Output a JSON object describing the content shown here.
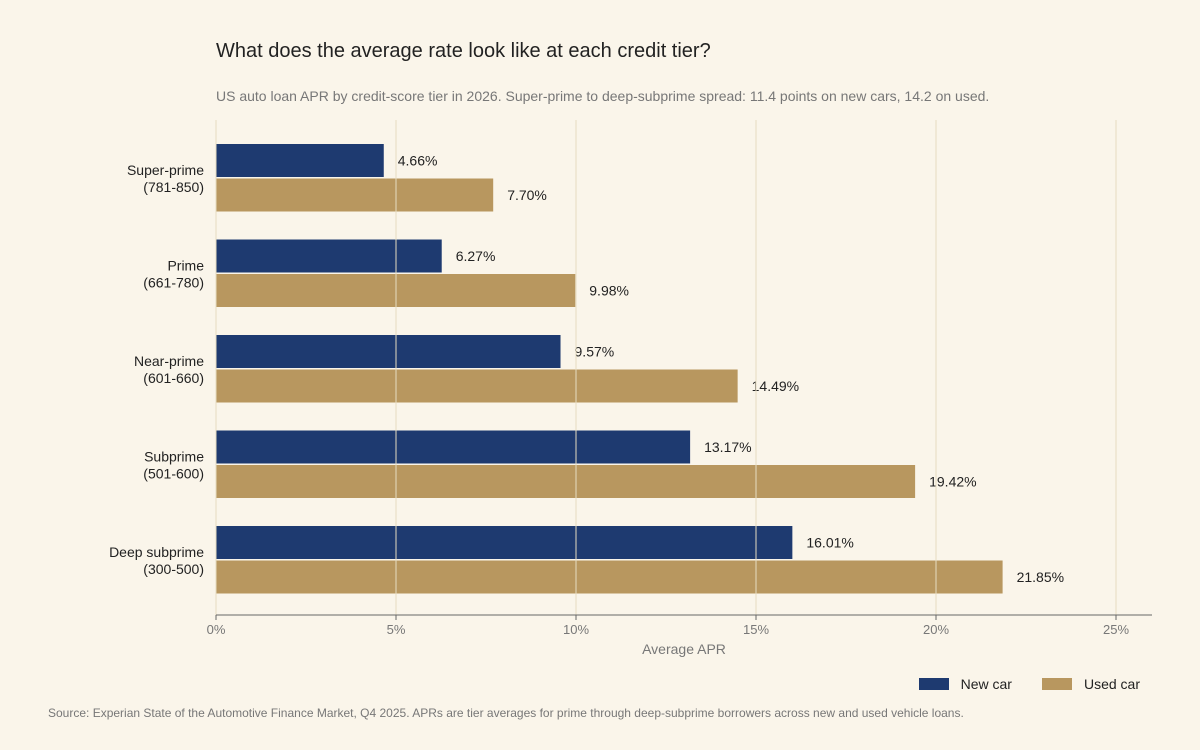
{
  "chart_data": {
    "type": "bar",
    "orientation": "horizontal",
    "title": "What does the average rate look like at each credit tier?",
    "subtitle": "US auto loan APR by credit-score tier in 2026. Super-prime to deep-subprime spread: 11.4 points on new cars, 14.2 on used.",
    "categories": [
      [
        "Super-prime",
        "(781-850)"
      ],
      [
        "Prime",
        "(661-780)"
      ],
      [
        "Near-prime",
        "(601-660)"
      ],
      [
        "Subprime",
        "(501-600)"
      ],
      [
        "Deep subprime",
        "(300-500)"
      ]
    ],
    "series": [
      {
        "name": "New car",
        "color": "#1e3a70",
        "values": [
          4.66,
          6.27,
          9.57,
          13.17,
          16.01
        ],
        "labels": [
          "4.66%",
          "6.27%",
          "9.57%",
          "13.17%",
          "16.01%"
        ]
      },
      {
        "name": "Used car",
        "color": "#b8975f",
        "values": [
          7.7,
          9.98,
          14.49,
          19.42,
          21.85
        ],
        "labels": [
          "7.70%",
          "9.98%",
          "14.49%",
          "19.42%",
          "21.85%"
        ]
      }
    ],
    "xlabel": "Average APR",
    "xlim": [
      0,
      26
    ],
    "xticks": [
      0,
      5,
      10,
      15,
      20,
      25
    ],
    "xtick_labels": [
      "0%",
      "5%",
      "10%",
      "15%",
      "20%",
      "25%"
    ],
    "grid": "vertical",
    "legend_position": "bottom-right"
  },
  "source": "Source: Experian State of the Automotive Finance Market, Q4 2025. APRs are tier averages for prime through deep-subprime borrowers across new and used vehicle loans."
}
